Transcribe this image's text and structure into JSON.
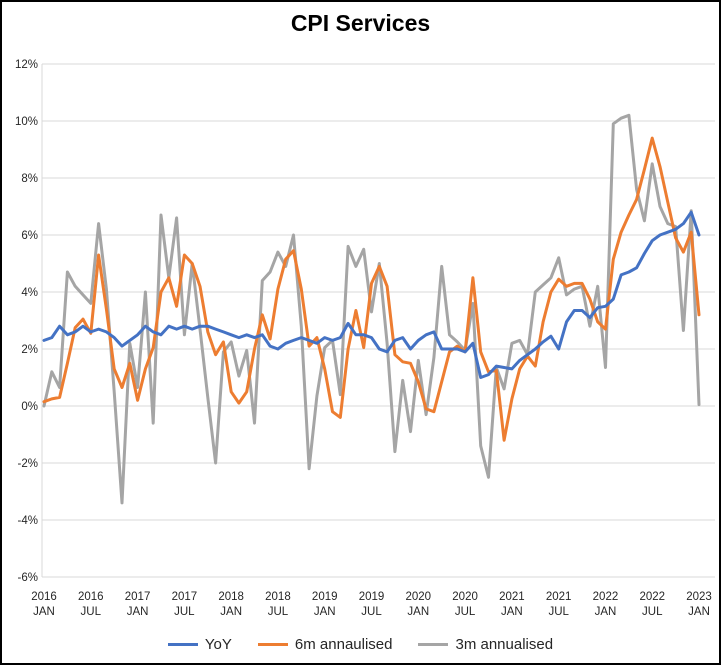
{
  "window": {
    "title": "CPI Services"
  },
  "chart_data": {
    "type": "line",
    "title": "CPI Services",
    "xlabel": "",
    "ylabel": "",
    "grid": true,
    "legend_position": "bottom",
    "y_axis": {
      "min": -6,
      "max": 12,
      "step": 2,
      "tick_labels": [
        "12%",
        "10%",
        "8%",
        "6%",
        "4%",
        "2%",
        "0%",
        "-2%",
        "-4%",
        "-6%"
      ]
    },
    "x_axis": {
      "unit": "month",
      "range": [
        "2016 JAN",
        "2023 JAN"
      ],
      "months_total": 85,
      "tick_every_months": 6,
      "tick_labels": [
        {
          "year": "2016",
          "month": "JAN"
        },
        {
          "year": "2016",
          "month": "JUL"
        },
        {
          "year": "2017",
          "month": "JAN"
        },
        {
          "year": "2017",
          "month": "JUL"
        },
        {
          "year": "2018",
          "month": "JAN"
        },
        {
          "year": "2018",
          "month": "JUL"
        },
        {
          "year": "2019",
          "month": "JAN"
        },
        {
          "year": "2019",
          "month": "JUL"
        },
        {
          "year": "2020",
          "month": "JAN"
        },
        {
          "year": "2020",
          "month": "JUL"
        },
        {
          "year": "2021",
          "month": "JAN"
        },
        {
          "year": "2021",
          "month": "JUL"
        },
        {
          "year": "2022",
          "month": "JAN"
        },
        {
          "year": "2022",
          "month": "JUL"
        },
        {
          "year": "2023",
          "month": "JAN"
        }
      ]
    },
    "series": [
      {
        "name": "YoY",
        "color": "#4472C4",
        "values": [
          2.3,
          2.4,
          2.8,
          2.5,
          2.6,
          2.8,
          2.6,
          2.7,
          2.6,
          2.4,
          2.1,
          2.3,
          2.5,
          2.8,
          2.6,
          2.5,
          2.8,
          2.7,
          2.8,
          2.7,
          2.8,
          2.8,
          2.7,
          2.6,
          2.5,
          2.4,
          2.5,
          2.4,
          2.5,
          2.1,
          2.0,
          2.2,
          2.3,
          2.4,
          2.3,
          2.2,
          2.4,
          2.3,
          2.4,
          2.9,
          2.5,
          2.5,
          2.4,
          2.0,
          1.9,
          2.3,
          2.4,
          2.0,
          2.3,
          2.5,
          2.6,
          2.0,
          2.0,
          2.0,
          1.9,
          2.2,
          1.0,
          1.1,
          1.4,
          1.35,
          1.3,
          1.6,
          1.8,
          2.0,
          2.25,
          2.45,
          2.0,
          2.95,
          3.35,
          3.35,
          3.1,
          3.45,
          3.5,
          3.75,
          4.6,
          4.7,
          4.85,
          5.35,
          5.8,
          6.0,
          6.1,
          6.2,
          6.4,
          6.8,
          6.0
        ]
      },
      {
        "name": "6m annaulised",
        "color": "#ED7D31",
        "values": [
          0.15,
          0.25,
          0.3,
          1.5,
          2.75,
          3.05,
          2.55,
          5.3,
          3.4,
          1.3,
          0.65,
          1.5,
          0.2,
          1.3,
          2.05,
          4.0,
          4.5,
          3.5,
          5.3,
          5.0,
          4.2,
          2.6,
          1.8,
          2.25,
          0.5,
          0.1,
          0.5,
          2.0,
          3.2,
          2.35,
          4.1,
          5.15,
          5.45,
          4.1,
          2.1,
          2.4,
          1.3,
          -0.2,
          -0.4,
          2.0,
          3.35,
          2.05,
          4.3,
          4.9,
          4.2,
          1.8,
          1.55,
          1.5,
          0.85,
          -0.1,
          -0.2,
          0.85,
          1.9,
          2.1,
          1.9,
          4.5,
          1.9,
          1.2,
          1.25,
          -1.2,
          0.25,
          1.3,
          1.75,
          1.4,
          2.95,
          4.0,
          4.45,
          4.2,
          4.3,
          4.3,
          3.75,
          2.95,
          2.7,
          5.15,
          6.1,
          6.7,
          7.25,
          8.3,
          9.4,
          8.4,
          7.15,
          5.9,
          5.4,
          6.1,
          3.2
        ]
      },
      {
        "name": "3m annualised",
        "color": "#A5A5A5",
        "values": [
          0.0,
          1.2,
          0.65,
          4.7,
          4.2,
          3.9,
          3.6,
          6.4,
          4.1,
          0.5,
          -3.4,
          2.2,
          0.65,
          4.0,
          -0.6,
          6.7,
          4.5,
          6.6,
          2.5,
          5.0,
          2.7,
          0.3,
          -2.0,
          1.9,
          2.25,
          1.05,
          1.95,
          -0.6,
          4.4,
          4.7,
          5.4,
          4.9,
          6.0,
          2.8,
          -2.2,
          0.35,
          2.05,
          2.3,
          0.4,
          5.6,
          4.9,
          5.5,
          3.3,
          5.0,
          2.2,
          -1.6,
          0.9,
          -0.9,
          1.6,
          -0.3,
          1.7,
          4.9,
          2.5,
          2.25,
          1.95,
          3.6,
          -1.4,
          -2.5,
          1.35,
          0.6,
          2.2,
          2.3,
          1.8,
          4.0,
          4.25,
          4.5,
          5.2,
          3.9,
          4.1,
          4.2,
          2.8,
          4.2,
          1.35,
          9.9,
          10.1,
          10.2,
          7.6,
          6.5,
          8.5,
          7.0,
          6.4,
          6.3,
          2.65,
          6.85,
          0.05
        ]
      }
    ],
    "legend": [
      "YoY",
      "6m annaulised",
      "3m annualised"
    ]
  }
}
